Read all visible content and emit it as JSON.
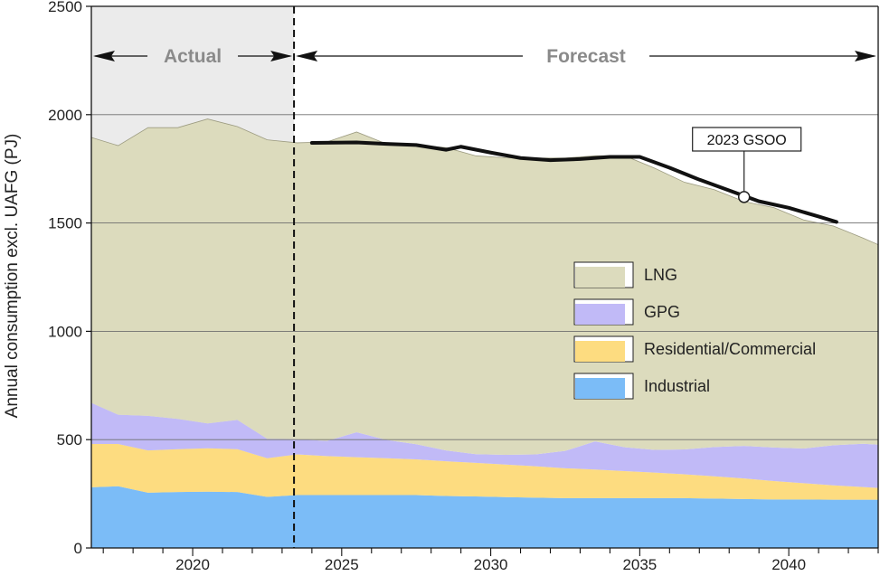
{
  "chart_data": {
    "type": "area",
    "title": "",
    "ylabel": "Annual consumption excl. UAFG (PJ)",
    "xlabel": "",
    "xlim": [
      2016.6,
      2043.0
    ],
    "ylim": [
      0,
      2500
    ],
    "yticks": [
      0,
      500,
      1000,
      1500,
      2000,
      2500
    ],
    "xticks": [
      2020,
      2025,
      2030,
      2035,
      2040
    ],
    "grid": "horizontal",
    "legend_position": "center-right",
    "x": [
      2016.6,
      2017.5,
      2018.5,
      2019.5,
      2020.5,
      2021.5,
      2022.5,
      2023.5,
      2024.5,
      2025.5,
      2026.5,
      2027.5,
      2028.5,
      2029.5,
      2030.5,
      2031.5,
      2032.5,
      2033.5,
      2034.5,
      2035.5,
      2036.5,
      2037.5,
      2038.5,
      2039.5,
      2040.5,
      2041.5,
      2042.5,
      2043.0
    ],
    "series": [
      {
        "name": "Industrial",
        "color": "#7bbcf7",
        "values": [
          280,
          285,
          255,
          258,
          260,
          258,
          236,
          244,
          244,
          244,
          244,
          244,
          240,
          238,
          235,
          232,
          230,
          230,
          230,
          230,
          230,
          228,
          226,
          224,
          224,
          223,
          223,
          223
        ]
      },
      {
        "name": "Residential/Commercial",
        "color": "#fddc80",
        "values": [
          200,
          195,
          195,
          198,
          200,
          198,
          178,
          188,
          180,
          175,
          170,
          165,
          160,
          155,
          150,
          145,
          138,
          132,
          125,
          118,
          110,
          103,
          95,
          85,
          75,
          66,
          58,
          54
        ]
      },
      {
        "name": "GPG",
        "color": "#c1baf7",
        "values": [
          190,
          135,
          160,
          140,
          115,
          135,
          90,
          70,
          70,
          115,
          85,
          70,
          50,
          40,
          45,
          55,
          80,
          130,
          110,
          105,
          115,
          135,
          150,
          155,
          160,
          185,
          200,
          200
        ]
      },
      {
        "name": "LNG",
        "color": "#dcdbbd",
        "values": [
          1225,
          1242,
          1330,
          1344,
          1405,
          1354,
          1380,
          1368,
          1380,
          1386,
          1366,
          1381,
          1398,
          1377,
          1371,
          1368,
          1352,
          1318,
          1345,
          1300,
          1233,
          1188,
          1128,
          1107,
          1055,
          1012,
          949,
          923
        ]
      }
    ],
    "gsoo_line": {
      "name": "2023 GSOO",
      "x": [
        2024.0,
        2025.5,
        2026.5,
        2027.5,
        2028.5,
        2029.0,
        2030.0,
        2031.0,
        2032.0,
        2033.0,
        2034.0,
        2035.0,
        2036.0,
        2037.0,
        2038.0,
        2039.0,
        2040.0,
        2041.0,
        2041.6
      ],
      "values": [
        1870,
        1872,
        1865,
        1860,
        1838,
        1852,
        1825,
        1800,
        1790,
        1795,
        1805,
        1805,
        1755,
        1700,
        1650,
        1600,
        1570,
        1530,
        1505
      ],
      "marker_x": 2038.5,
      "marker_y": 1620,
      "annotation": "2023 GSOO"
    },
    "regions": {
      "actual": {
        "label": "Actual",
        "from": 2016.6,
        "to": 2023.4,
        "shade": "#ebebeb"
      },
      "forecast": {
        "label": "Forecast",
        "from": 2023.4,
        "to": 2043.0
      },
      "divider_x": 2023.4
    }
  }
}
